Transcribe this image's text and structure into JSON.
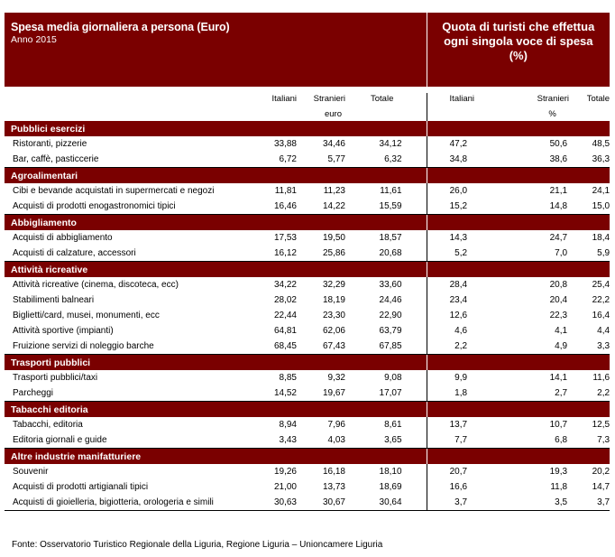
{
  "header": {
    "title": "Spesa media giornaliera a persona (Euro)",
    "subtitle": "Anno 2015",
    "right_line1": "Quota di turisti che effettua",
    "right_line2": "ogni singola voce di spesa",
    "right_line3": "(%)"
  },
  "columns": {
    "italiani": "Italiani",
    "stranieri": "Stranieri",
    "totale": "Totale",
    "italiani_pct": "Italiani",
    "stranieri_pct": "Stranieri",
    "totale_pct": "Totale",
    "unit_euro": "euro",
    "unit_pct": "%"
  },
  "sections": [
    {
      "name": "Pubblici esercizi",
      "rows": [
        {
          "label": "Ristoranti, pizzerie",
          "it": "33,88",
          "st": "34,46",
          "tot": "34,12",
          "pit": "47,2",
          "pst": "50,6",
          "ptot": "48,5"
        },
        {
          "label": "Bar, caffè, pasticcerie",
          "it": "6,72",
          "st": "5,77",
          "tot": "6,32",
          "pit": "34,8",
          "pst": "38,6",
          "ptot": "36,3"
        }
      ]
    },
    {
      "name": "Agroalimentari",
      "rows": [
        {
          "label": "Cibi e bevande acquistati in supermercati e negozi",
          "it": "11,81",
          "st": "11,23",
          "tot": "11,61",
          "pit": "26,0",
          "pst": "21,1",
          "ptot": "24,1"
        },
        {
          "label": "Acquisti di prodotti enogastronomici tipici",
          "it": "16,46",
          "st": "14,22",
          "tot": "15,59",
          "pit": "15,2",
          "pst": "14,8",
          "ptot": "15,0"
        }
      ]
    },
    {
      "name": "Abbigliamento",
      "rows": [
        {
          "label": "Acquisti di abbigliamento",
          "it": "17,53",
          "st": "19,50",
          "tot": "18,57",
          "pit": "14,3",
          "pst": "24,7",
          "ptot": "18,4"
        },
        {
          "label": "Acquisti di calzature, accessori",
          "it": "16,12",
          "st": "25,86",
          "tot": "20,68",
          "pit": "5,2",
          "pst": "7,0",
          "ptot": "5,9"
        }
      ]
    },
    {
      "name": "Attività ricreative",
      "rows": [
        {
          "label": "Attività ricreative (cinema, discoteca, ecc)",
          "it": "34,22",
          "st": "32,29",
          "tot": "33,60",
          "pit": "28,4",
          "pst": "20,8",
          "ptot": "25,4"
        },
        {
          "label": "Stabilimenti balneari",
          "it": "28,02",
          "st": "18,19",
          "tot": "24,46",
          "pit": "23,4",
          "pst": "20,4",
          "ptot": "22,2"
        },
        {
          "label": "Biglietti/card, musei, monumenti, ecc",
          "it": "22,44",
          "st": "23,30",
          "tot": "22,90",
          "pit": "12,6",
          "pst": "22,3",
          "ptot": "16,4"
        },
        {
          "label": "Attività sportive (impianti)",
          "it": "64,81",
          "st": "62,06",
          "tot": "63,79",
          "pit": "4,6",
          "pst": "4,1",
          "ptot": "4,4"
        },
        {
          "label": "Fruizione servizi di noleggio barche",
          "it": "68,45",
          "st": "67,43",
          "tot": "67,85",
          "pit": "2,2",
          "pst": "4,9",
          "ptot": "3,3"
        }
      ]
    },
    {
      "name": "Trasporti pubblici",
      "rows": [
        {
          "label": "Trasporti pubblici/taxi",
          "it": "8,85",
          "st": "9,32",
          "tot": "9,08",
          "pit": "9,9",
          "pst": "14,1",
          "ptot": "11,6"
        },
        {
          "label": "Parcheggi",
          "it": "14,52",
          "st": "19,67",
          "tot": "17,07",
          "pit": "1,8",
          "pst": "2,7",
          "ptot": "2,2"
        }
      ]
    },
    {
      "name": "Tabacchi editoria",
      "rows": [
        {
          "label": "Tabacchi, editoria",
          "it": "8,94",
          "st": "7,96",
          "tot": "8,61",
          "pit": "13,7",
          "pst": "10,7",
          "ptot": "12,5"
        },
        {
          "label": "Editoria giornali e guide",
          "it": "3,43",
          "st": "4,03",
          "tot": "3,65",
          "pit": "7,7",
          "pst": "6,8",
          "ptot": "7,3"
        }
      ]
    },
    {
      "name": "Altre industrie manifatturiere",
      "rows": [
        {
          "label": "Souvenir",
          "it": "19,26",
          "st": "16,18",
          "tot": "18,10",
          "pit": "20,7",
          "pst": "19,3",
          "ptot": "20,2"
        },
        {
          "label": "Acquisti di prodotti artigianali tipici",
          "it": "21,00",
          "st": "13,73",
          "tot": "18,69",
          "pit": "16,6",
          "pst": "11,8",
          "ptot": "14,7"
        },
        {
          "label": "Acquisti di gioielleria, bigiotteria, orologeria e simili",
          "it": "30,63",
          "st": "30,67",
          "tot": "30,64",
          "pit": "3,7",
          "pst": "3,5",
          "ptot": "3,7"
        }
      ]
    }
  ],
  "footer": {
    "source": "Fonte: Osservatorio Turistico Regionale della Liguria, Regione Liguria – Unioncamere Liguria"
  }
}
